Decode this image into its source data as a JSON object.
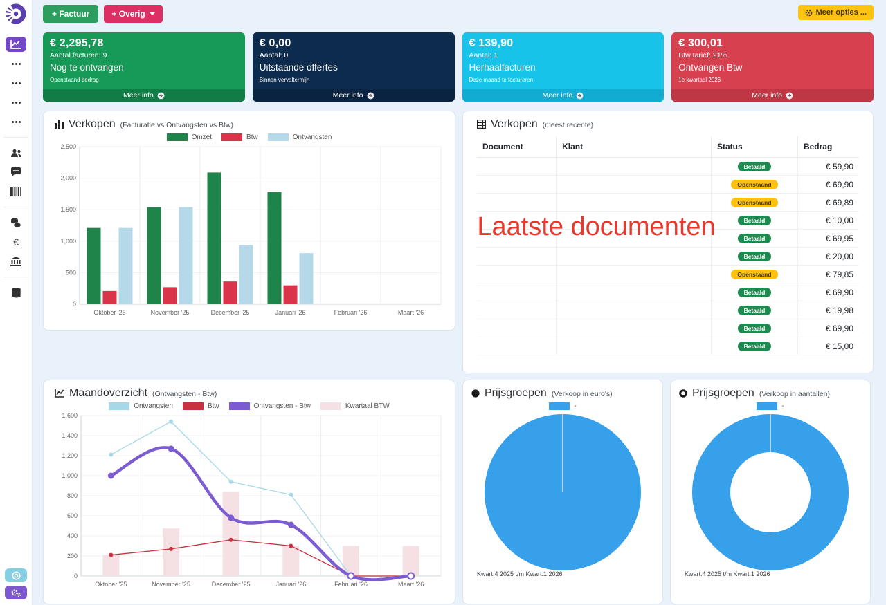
{
  "topbar": {
    "factuur_label": "+ Factuur",
    "overig_label": "+ Overig",
    "meer_opties_label": "Meer opties ..."
  },
  "sidebar": {
    "icons": [
      "chart-line-active",
      "ellipsis",
      "ellipsis",
      "ellipsis",
      "ellipsis",
      "users",
      "chat",
      "barcode",
      "coins",
      "euro",
      "bank",
      "database",
      "support",
      "settings"
    ]
  },
  "cards": [
    {
      "amount": "€ 2,295,78",
      "subtitle": "Aantal facturen: 9",
      "title": "Nog te ontvangen",
      "note": "Openstaand bedrag",
      "link": "Meer info",
      "bg": "#179a57",
      "footer_bg": "#117c46"
    },
    {
      "amount": "€ 0,00",
      "subtitle": "Aantal: 0",
      "title": "Uitstaande offertes",
      "note": "Binnen vervaltermijn",
      "link": "Meer info",
      "bg": "#0d2b4d",
      "footer_bg": "#0a2340"
    },
    {
      "amount": "€ 139,90",
      "subtitle": "Aantal: 1",
      "title": "Herhaalfacturen",
      "note": "Deze maand te factureren",
      "link": "Meer info",
      "bg": "#17c3e8",
      "footer_bg": "#12abd2"
    },
    {
      "amount": "€ 300,01",
      "subtitle": "Btw tarief: 21%",
      "title": "Ontvangen Btw",
      "note": "1e kwartaal 2026",
      "link": "Meer info",
      "bg": "#d6404f",
      "footer_bg": "#bd3745"
    }
  ],
  "sales_chart_panel": {
    "title": "Verkopen",
    "subtitle": "(Facturatie vs Ontvangsten vs Btw)"
  },
  "table_panel": {
    "title": "Verkopen",
    "subtitle": "(meest recente)",
    "columns": [
      "Document",
      "Klant",
      "Status",
      "Bedrag"
    ],
    "overlay_text": "Laatste documenten",
    "rows": [
      {
        "status": "Betaald",
        "amount": "€ 59,90"
      },
      {
        "status": "Openstaand",
        "amount": "€ 69,90"
      },
      {
        "status": "Openstaand",
        "amount": "€ 69,89"
      },
      {
        "status": "Betaald",
        "amount": "€ 10,00"
      },
      {
        "status": "Betaald",
        "amount": "€ 69,95"
      },
      {
        "status": "Betaald",
        "amount": "€ 20,00"
      },
      {
        "status": "Openstaand",
        "amount": "€ 79,85"
      },
      {
        "status": "Betaald",
        "amount": "€ 69,90"
      },
      {
        "status": "Betaald",
        "amount": "€ 19,98"
      },
      {
        "status": "Betaald",
        "amount": "€ 69,90"
      },
      {
        "status": "Betaald",
        "amount": "€ 15,00"
      }
    ]
  },
  "month_panel": {
    "title": "Maandoverzicht",
    "subtitle": "(Ontvangsten - Btw)"
  },
  "pie_panels": [
    {
      "title": "Prijsgroepen",
      "subtitle": "(Verkoop in euro's)",
      "caption": "Kwart.4 2025 t/m Kwart.1 2026"
    },
    {
      "title": "Prijsgroepen",
      "subtitle": "(Verkoop in aantallen)",
      "caption": "Kwart.4 2025 t/m Kwart.1 2026"
    }
  ],
  "colors": {
    "accent_purple": "#7348c8",
    "badge_paid": "#1e8a50",
    "badge_open": "#fdc112",
    "overlay_red": "#e8392f",
    "page_bg": "#e9f2fb"
  },
  "chart_data": [
    {
      "type": "bar",
      "title": "Verkopen (Facturatie vs Ontvangsten vs Btw)",
      "categories": [
        "Oktober '25",
        "November '25",
        "December '25",
        "Januari '26",
        "Februari '26",
        "Maart '26"
      ],
      "series": [
        {
          "name": "Omzet",
          "color": "#1e8449",
          "values": [
            1210,
            1540,
            2090,
            1780,
            0,
            0
          ]
        },
        {
          "name": "Btw",
          "color": "#d9344a",
          "values": [
            210,
            270,
            360,
            300,
            0,
            0
          ]
        },
        {
          "name": "Ontvangsten",
          "color": "#b5d9e8",
          "values": [
            1210,
            1540,
            940,
            810,
            0,
            0
          ]
        }
      ],
      "ylim": [
        0,
        2500
      ],
      "ytick": 500,
      "grid": true,
      "legend_position": "top"
    },
    {
      "type": "line",
      "title": "Maandoverzicht (Ontvangsten - Btw)",
      "categories": [
        "Oktober '25",
        "November '25",
        "December '25",
        "Januari '26",
        "Februari '26",
        "Maart '26"
      ],
      "series": [
        {
          "name": "Ontvangsten",
          "kind": "line",
          "color": "#a6d8e8",
          "width": 1.3,
          "smooth": false,
          "values": [
            1210,
            1540,
            940,
            810,
            0,
            0
          ]
        },
        {
          "name": "Btw",
          "kind": "line",
          "color": "#c8313f",
          "width": 1.3,
          "smooth": false,
          "values": [
            210,
            270,
            360,
            300,
            0,
            0
          ]
        },
        {
          "name": "Ontvangsten - Btw",
          "kind": "line",
          "color": "#7c5cd1",
          "width": 4.5,
          "smooth": true,
          "values": [
            1000,
            1270,
            580,
            510,
            0,
            0
          ]
        },
        {
          "name": "Kwartaal BTW",
          "kind": "bar",
          "color": "#f5e1e3",
          "values": [
            210,
            475,
            840,
            300,
            300,
            300
          ]
        }
      ],
      "ylim": [
        0,
        1600
      ],
      "ytick": 200,
      "grid": true,
      "legend_position": "top"
    },
    {
      "type": "pie",
      "donut": false,
      "title": "Prijsgroepen (Verkoop in euro's)",
      "labels": [
        "-"
      ],
      "values": [
        100
      ],
      "colors": [
        "#36a0ea"
      ],
      "caption": "Kwart.4 2025 t/m Kwart.1 2026",
      "legend_position": "top"
    },
    {
      "type": "pie",
      "donut": true,
      "title": "Prijsgroepen (Verkoop in aantallen)",
      "labels": [
        "-"
      ],
      "values": [
        100
      ],
      "colors": [
        "#36a0ea"
      ],
      "caption": "Kwart.4 2025 t/m Kwart.1 2026",
      "legend_position": "top"
    }
  ]
}
